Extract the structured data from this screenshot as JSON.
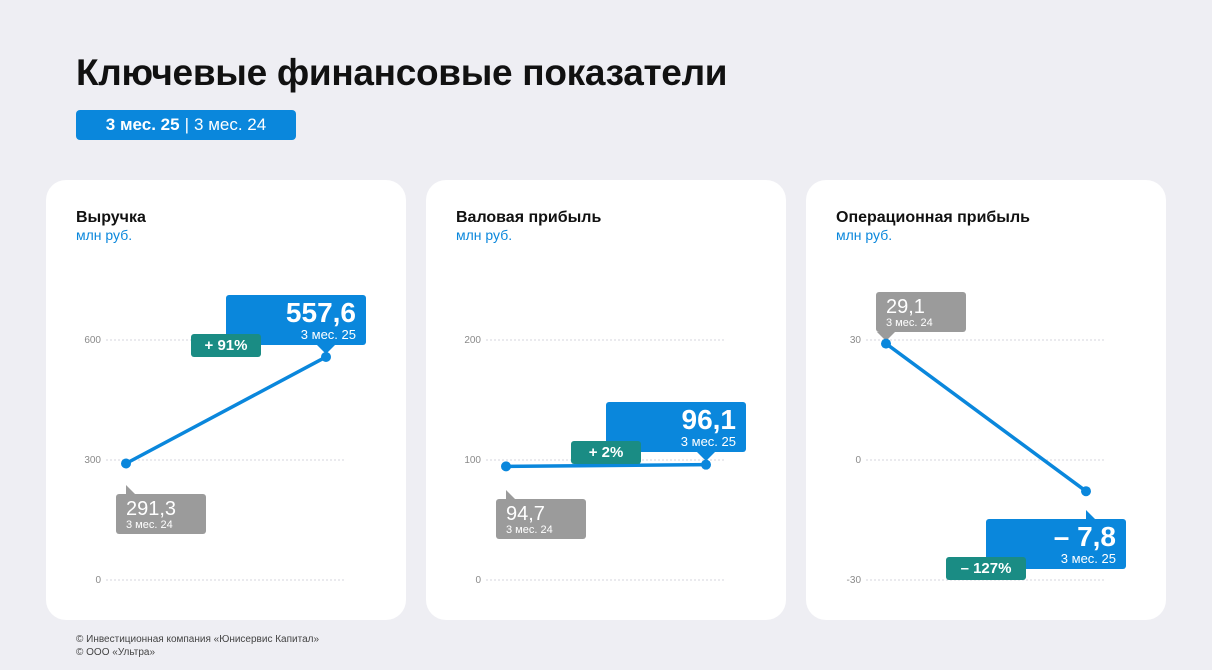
{
  "page": {
    "title": "Ключевые финансовые показатели",
    "period_current": "3 мес. 25",
    "period_separator": "|",
    "period_previous": "3 мес. 24"
  },
  "colors": {
    "current": "#0a87dc",
    "previous": "#9b9b9b",
    "change": "#1a8c84",
    "line": "#0a87dc"
  },
  "chart_data": [
    {
      "type": "line",
      "title": "Выручка",
      "ylabel": "млн руб.",
      "ylim": [
        0,
        600
      ],
      "yticks": [
        0,
        300,
        600
      ],
      "yticklabels": [
        "0",
        "300",
        "600"
      ],
      "grid": true,
      "points": [
        {
          "period": "3 мес. 24",
          "value": 291.3,
          "label": "291,3"
        },
        {
          "period": "3 мес. 25",
          "value": 557.6,
          "label": "557,6"
        }
      ],
      "change_label": "+ 91%"
    },
    {
      "type": "line",
      "title": "Валовая прибыль",
      "ylabel": "млн руб.",
      "ylim": [
        0,
        200
      ],
      "yticks": [
        0,
        100,
        200
      ],
      "yticklabels": [
        "0",
        "100",
        "200"
      ],
      "grid": true,
      "points": [
        {
          "period": "3 мес. 24",
          "value": 94.7,
          "label": "94,7"
        },
        {
          "period": "3 мес. 25",
          "value": 96.1,
          "label": "96,1"
        }
      ],
      "change_label": "+ 2%"
    },
    {
      "type": "line",
      "title": "Операционная прибыль",
      "ylabel": "млн руб.",
      "ylim": [
        -30,
        30
      ],
      "yticks": [
        -30,
        0,
        30
      ],
      "yticklabels": [
        "-30",
        "0",
        "30"
      ],
      "grid": true,
      "points": [
        {
          "period": "3 мес. 24",
          "value": 29.1,
          "label": "29,1"
        },
        {
          "period": "3 мес. 25",
          "value": -7.8,
          "label": "– 7,8"
        }
      ],
      "change_label": "– 127%"
    }
  ],
  "footer": {
    "line1": "© Инвестиционная компания «Юнисервис Капитал»",
    "line2": "© ООО «Ультра»"
  }
}
